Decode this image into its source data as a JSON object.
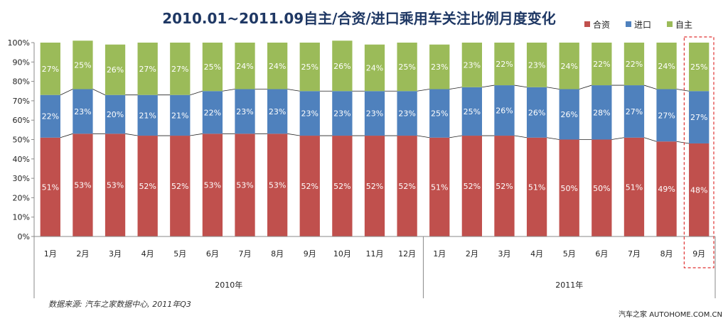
{
  "chart_data": {
    "type": "bar",
    "stacked": true,
    "percent": true,
    "title": "2010.01~2011.09自主/合资/进口乘用车关注比例月度变化",
    "categories": [
      "1月",
      "2月",
      "3月",
      "4月",
      "5月",
      "6月",
      "7月",
      "8月",
      "9月",
      "10月",
      "11月",
      "12月",
      "1月",
      "2月",
      "3月",
      "4月",
      "5月",
      "6月",
      "7月",
      "8月",
      "9月"
    ],
    "groups": [
      {
        "label": "2010年",
        "count": 12
      },
      {
        "label": "2011年",
        "count": 9
      }
    ],
    "series": [
      {
        "name": "合资",
        "color": "#c0504d",
        "values": [
          51,
          53,
          53,
          52,
          52,
          53,
          53,
          53,
          52,
          52,
          52,
          52,
          51,
          52,
          52,
          51,
          50,
          50,
          51,
          49,
          48
        ],
        "labels": [
          "51%",
          "53%",
          "53%",
          "52%",
          "52%",
          "53%",
          "53%",
          "53%",
          "52%",
          "52%",
          "52%",
          "52%",
          "51%",
          "52%",
          "52%",
          "51%",
          "50%",
          "50%",
          "51%",
          "49%",
          "48%"
        ]
      },
      {
        "name": "进口",
        "color": "#4f81bd",
        "values": [
          22,
          23,
          20,
          21,
          21,
          22,
          23,
          23,
          23,
          23,
          23,
          23,
          25,
          25,
          26,
          26,
          26,
          28,
          27,
          27,
          27
        ],
        "labels": [
          "22%",
          "23%",
          "20%",
          "21%",
          "21%",
          "22%",
          "23%",
          "23%",
          "23%",
          "23%",
          "23%",
          "23%",
          "25%",
          "25%",
          "26%",
          "26%",
          "26%",
          "28%",
          "27%",
          "27%",
          "27%"
        ]
      },
      {
        "name": "自主",
        "color": "#9bbb59",
        "values": [
          27,
          25,
          26,
          27,
          27,
          25,
          24,
          24,
          25,
          26,
          24,
          25,
          23,
          23,
          22,
          23,
          24,
          22,
          22,
          24,
          25
        ],
        "labels": [
          "27%",
          "25%",
          "26%",
          "27%",
          "27%",
          "25%",
          "24%",
          "24%",
          "25%",
          "26%",
          "24%",
          "25%",
          "23%",
          "23%",
          "22%",
          "23%",
          "24%",
          "22%",
          "22%",
          "24%",
          "25%"
        ]
      }
    ],
    "ylim": [
      0,
      100
    ],
    "yticks": [
      "0%",
      "10%",
      "20%",
      "30%",
      "40%",
      "50%",
      "60%",
      "70%",
      "80%",
      "90%",
      "100%"
    ],
    "legend_position": "top-right",
    "highlight_category_index": 20,
    "grid": false
  },
  "source_note": "数据来源: 汽车之家数据中心, 2011年Q3",
  "watermark": "汽车之家 AUTOHOME.COM.CN"
}
